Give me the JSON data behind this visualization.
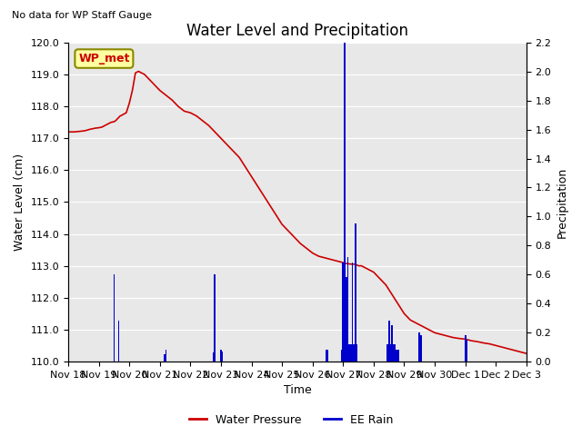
{
  "title": "Water Level and Precipitation",
  "subtitle": "No data for WP Staff Gauge",
  "xlabel": "Time",
  "ylabel_left": "Water Level (cm)",
  "ylabel_right": "Precipitation",
  "legend_label_wp": "WP_met",
  "legend_label_line1": "Water Pressure",
  "legend_label_line2": "EE Rain",
  "wp_line_color": "#cc0000",
  "rain_bar_color": "#0000cc",
  "legend_box_facecolor": "#ffffa0",
  "legend_box_edgecolor": "#888800",
  "plot_bg_color": "#e8e8e8",
  "fig_bg_color": "#ffffff",
  "ylim_left": [
    110.0,
    120.0
  ],
  "ylim_right": [
    0.0,
    2.2
  ],
  "title_fontsize": 12,
  "axis_label_fontsize": 9,
  "tick_fontsize": 8,
  "subtitle_fontsize": 8,
  "wp_data_x_days": [
    0.0,
    0.1,
    0.2,
    0.4,
    0.5,
    0.6,
    0.7,
    0.8,
    0.9,
    1.0,
    1.1,
    1.2,
    1.3,
    1.4,
    1.5,
    1.55,
    1.6,
    1.65,
    1.7,
    1.75,
    1.8,
    1.9,
    2.0,
    2.1,
    2.2,
    2.3,
    2.4,
    2.5,
    2.6,
    2.7,
    2.8,
    2.9,
    3.0,
    3.2,
    3.4,
    3.6,
    3.8,
    4.0,
    4.2,
    4.4,
    4.6,
    4.8,
    5.0,
    5.2,
    5.4,
    5.6,
    5.8,
    6.0,
    6.2,
    6.4,
    6.6,
    6.8,
    7.0,
    7.2,
    7.4,
    7.6,
    7.8,
    8.0,
    8.2,
    8.4,
    8.6,
    8.8,
    9.0,
    9.05,
    9.1,
    9.15,
    9.2,
    9.3,
    9.4,
    9.5,
    9.6,
    9.8,
    10.0,
    10.2,
    10.4,
    10.6,
    10.8,
    11.0,
    11.2,
    11.4,
    11.6,
    11.8,
    12.0,
    12.2,
    12.4,
    12.6,
    12.8,
    13.0,
    13.2,
    13.4,
    13.6,
    13.8,
    14.0,
    14.2,
    14.4,
    14.6,
    14.8,
    15.0
  ],
  "wp_data_y": [
    117.2,
    117.2,
    117.2,
    117.22,
    117.23,
    117.25,
    117.28,
    117.3,
    117.32,
    117.33,
    117.35,
    117.4,
    117.45,
    117.5,
    117.52,
    117.55,
    117.6,
    117.65,
    117.7,
    117.72,
    117.75,
    117.8,
    118.1,
    118.5,
    119.05,
    119.1,
    119.05,
    119.0,
    118.9,
    118.8,
    118.7,
    118.6,
    118.5,
    118.35,
    118.2,
    118.0,
    117.85,
    117.8,
    117.7,
    117.55,
    117.4,
    117.2,
    117.0,
    116.8,
    116.6,
    116.4,
    116.1,
    115.8,
    115.5,
    115.2,
    114.9,
    114.6,
    114.3,
    114.1,
    113.9,
    113.7,
    113.55,
    113.4,
    113.3,
    113.25,
    113.2,
    113.15,
    113.1,
    113.08,
    113.07,
    113.07,
    113.06,
    113.05,
    113.05,
    113.0,
    113.0,
    112.9,
    112.8,
    112.6,
    112.4,
    112.1,
    111.8,
    111.5,
    111.3,
    111.2,
    111.1,
    111.0,
    110.9,
    110.85,
    110.8,
    110.75,
    110.72,
    110.7,
    110.65,
    110.62,
    110.58,
    110.55,
    110.5,
    110.45,
    110.4,
    110.35,
    110.3,
    110.25
  ],
  "rain_data_x_days": [
    1.5,
    1.65,
    3.15,
    3.2,
    4.75,
    4.8,
    5.0,
    5.05,
    8.45,
    8.5,
    8.95,
    9.0,
    9.05,
    9.1,
    9.12,
    9.15,
    9.18,
    9.2,
    9.22,
    9.25,
    9.3,
    9.35,
    9.4,
    9.45,
    10.45,
    10.5,
    10.55,
    10.6,
    10.65,
    10.7,
    10.75,
    10.8,
    11.5,
    11.55,
    13.0,
    13.05
  ],
  "rain_data_y": [
    0.6,
    0.28,
    0.05,
    0.08,
    0.06,
    0.6,
    0.08,
    0.07,
    0.08,
    0.08,
    0.08,
    0.68,
    2.2,
    0.58,
    0.12,
    0.72,
    0.12,
    0.12,
    0.12,
    0.12,
    0.68,
    0.12,
    0.95,
    0.12,
    0.12,
    0.28,
    0.12,
    0.25,
    0.12,
    0.12,
    0.08,
    0.08,
    0.2,
    0.18,
    0.18,
    0.15
  ],
  "xtick_days": [
    0,
    1,
    2,
    3,
    4,
    5,
    6,
    7,
    8,
    9,
    10,
    11,
    12,
    13,
    14,
    15
  ],
  "xtick_labels": [
    "Nov 18",
    "Nov 19",
    "Nov 20",
    "Nov 21",
    "Nov 22",
    "Nov 23",
    "Nov 24",
    "Nov 25",
    "Nov 26",
    "Nov 27",
    "Nov 28",
    "Nov 29",
    "Nov 30",
    "Dec 1",
    "Dec 2",
    "Dec 3"
  ],
  "ytick_left": [
    110.0,
    111.0,
    112.0,
    113.0,
    114.0,
    115.0,
    116.0,
    117.0,
    118.0,
    119.0,
    120.0
  ],
  "ytick_right": [
    0.0,
    0.2,
    0.4,
    0.6,
    0.8,
    1.0,
    1.2,
    1.4,
    1.6,
    1.8,
    2.0,
    2.2
  ],
  "bar_width": 0.05
}
